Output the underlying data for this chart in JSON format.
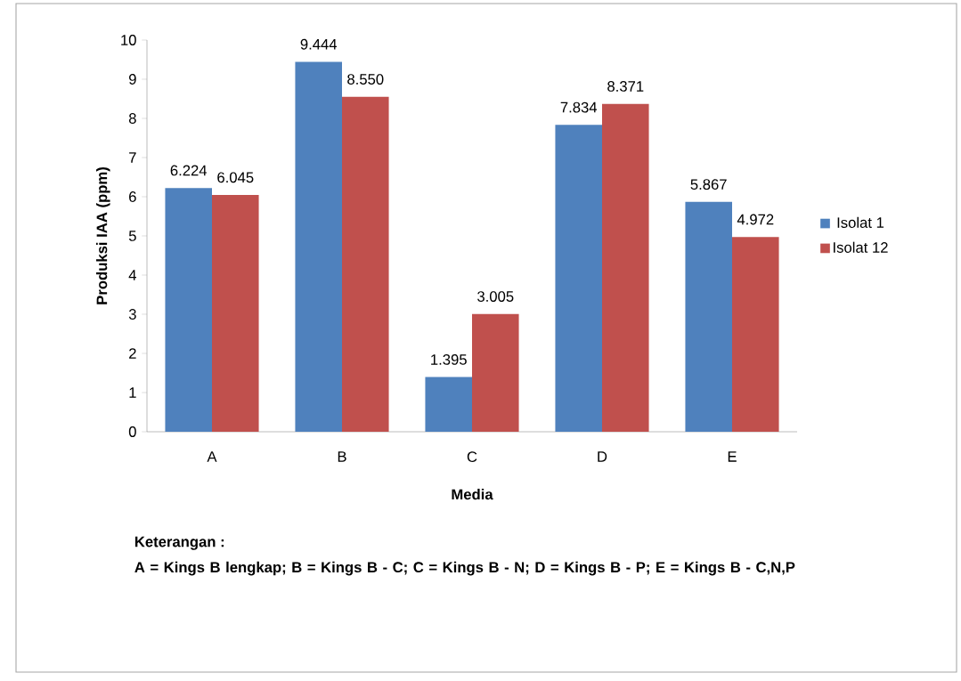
{
  "chart_data": {
    "type": "bar",
    "xlabel": "Media",
    "ylabel": "Produksi IAA (ppm)",
    "categories": [
      "A",
      "B",
      "C",
      "D",
      "E"
    ],
    "series": [
      {
        "name": "Isolat 1",
        "color": "#4f81bd",
        "values": [
          6.224,
          9.444,
          1.395,
          7.834,
          5.867
        ],
        "value_labels": [
          "6.224",
          "9.444",
          "1.395",
          "7.834",
          "5.867"
        ]
      },
      {
        "name": "Isolat 12",
        "color": "#c0504d",
        "values": [
          6.045,
          8.55,
          3.005,
          8.371,
          4.972
        ],
        "value_labels": [
          "6.045",
          "8.550",
          "3.005",
          "8.371",
          "4.972"
        ]
      }
    ],
    "ylim": [
      0,
      10
    ],
    "yticks": [
      0,
      1,
      2,
      3,
      4,
      5,
      6,
      7,
      8,
      9,
      10
    ],
    "legend": "right",
    "annotations": [
      "Keterangan :",
      "A = Kings B lengkap; B = Kings B - C; C = Kings B - N; D = Kings B - P; E = Kings B - C,N,P"
    ]
  }
}
